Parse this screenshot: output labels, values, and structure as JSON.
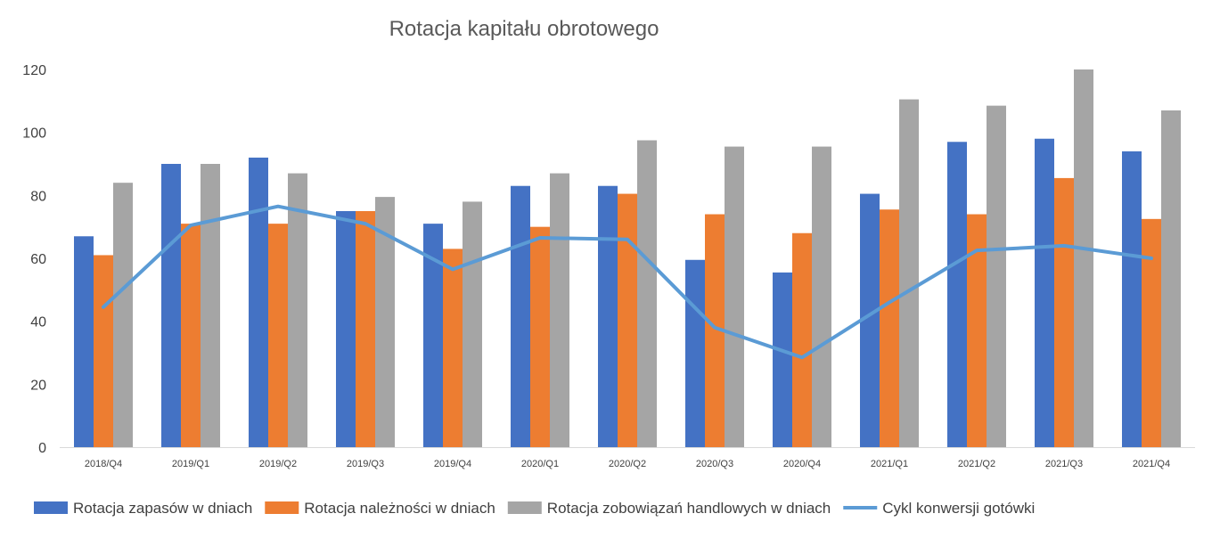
{
  "chart_data": {
    "type": "bar",
    "title": "Rotacja kapitału obrotowego",
    "xlabel": "",
    "ylabel": "",
    "ylim": [
      0,
      120
    ],
    "yticks": [
      "0",
      "20",
      "40",
      "60",
      "80",
      "100",
      "120"
    ],
    "grid": false,
    "legend_position": "bottom",
    "categories": [
      "2018/Q4",
      "2019/Q1",
      "2019/Q2",
      "2019/Q3",
      "2019/Q4",
      "2020/Q1",
      "2020/Q2",
      "2020/Q3",
      "2020/Q4",
      "2021/Q1",
      "2021/Q2",
      "2021/Q3",
      "2021/Q4"
    ],
    "series": [
      {
        "name": "Rotacja zapasów w dniach",
        "type": "bar",
        "color": "#4472C4",
        "values": [
          67,
          90,
          92,
          75,
          71,
          83,
          83,
          59.5,
          55.5,
          80.5,
          97,
          98,
          94
        ]
      },
      {
        "name": "Rotacja należności w dniach",
        "type": "bar",
        "color": "#ED7D31",
        "values": [
          61,
          71,
          71,
          75,
          63,
          70,
          80.5,
          74,
          68,
          75.5,
          74,
          85.5,
          72.5
        ]
      },
      {
        "name": "Rotacja zobowiązań handlowych w dniach",
        "type": "bar",
        "color": "#A5A5A5",
        "values": [
          84,
          90,
          87,
          79.5,
          78,
          87,
          97.5,
          95.5,
          95.5,
          110.5,
          108.5,
          120,
          107
        ]
      },
      {
        "name": "Cykl konwersji gotówki",
        "type": "line",
        "color": "#5B9BD5",
        "values": [
          44.5,
          70.5,
          76.5,
          71,
          56.5,
          66.5,
          66,
          38,
          28.5,
          46,
          62.5,
          64,
          60
        ]
      }
    ]
  }
}
